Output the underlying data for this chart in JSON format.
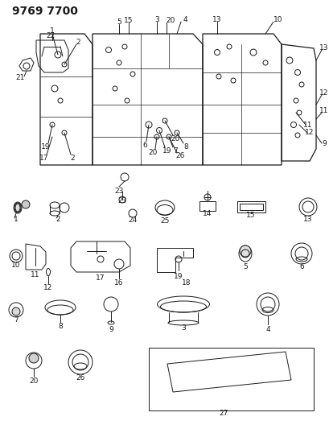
{
  "title": "9769 7700",
  "bg_color": "#ffffff",
  "line_color": "#1a1a1a",
  "title_fontsize": 10,
  "label_fontsize": 6.5,
  "fig_width": 4.1,
  "fig_height": 5.33,
  "dpi": 100
}
